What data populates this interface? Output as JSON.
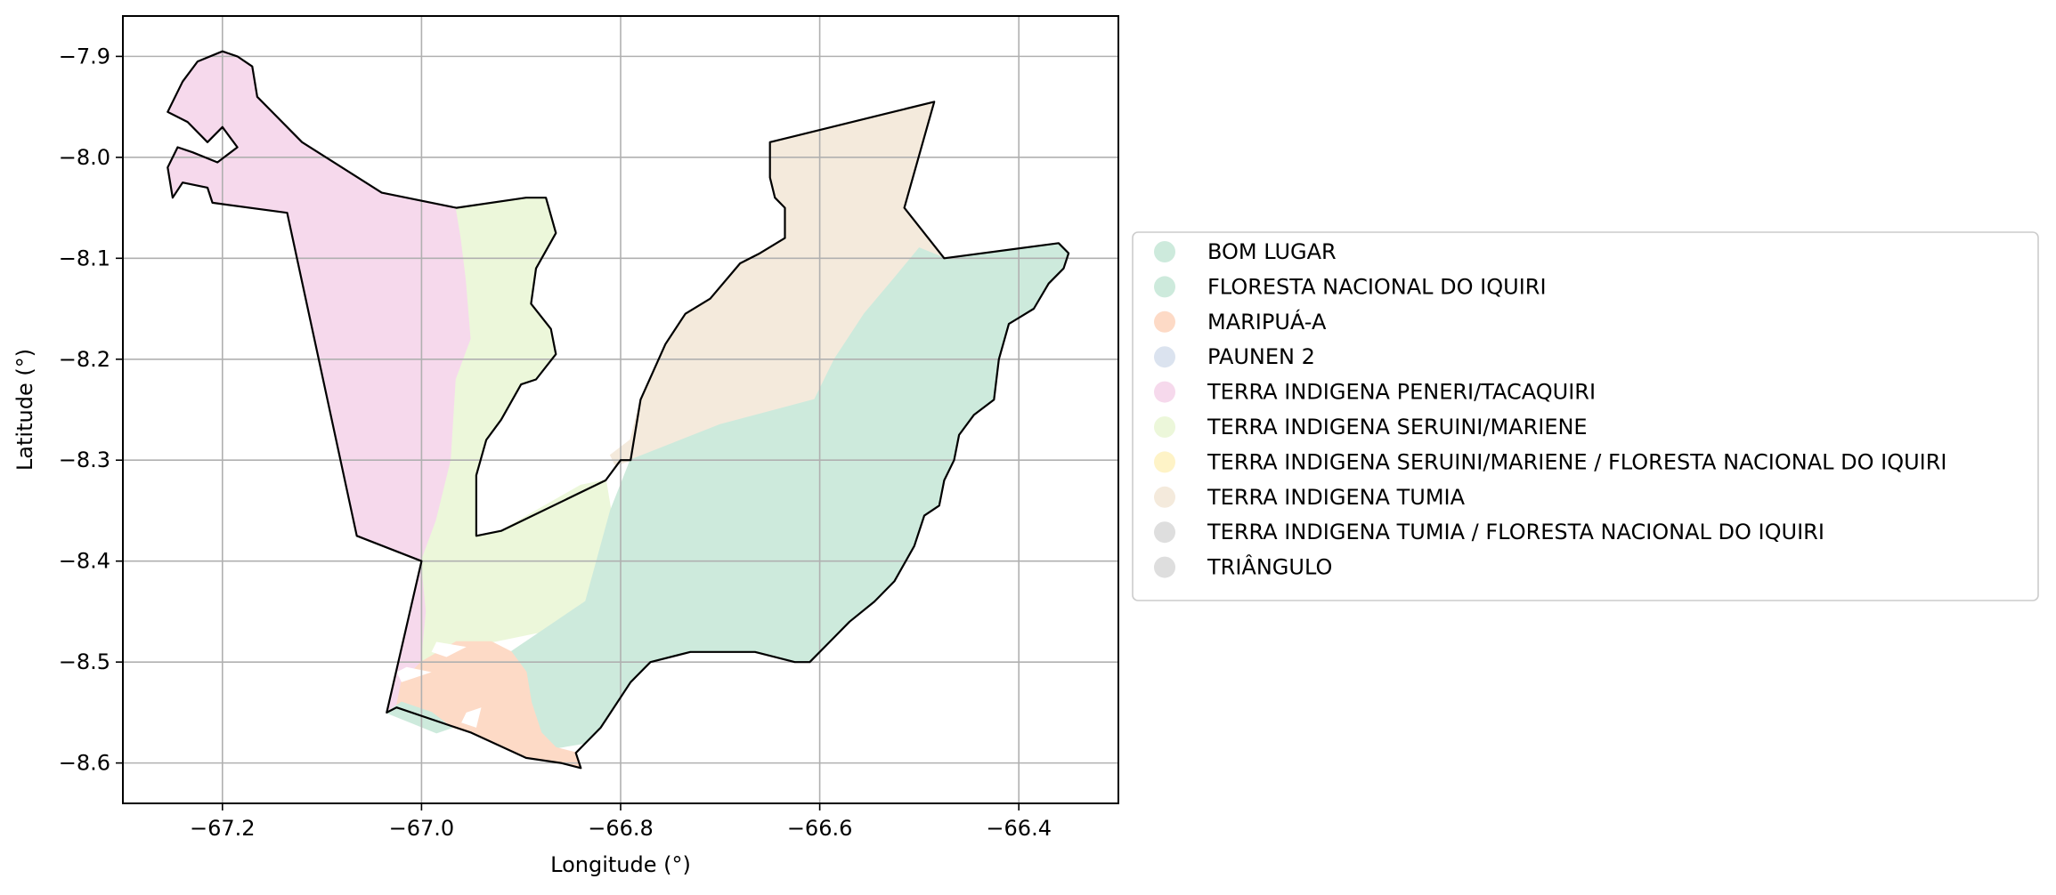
{
  "chart_data": {
    "type": "map",
    "xlabel": "Longitude (°)",
    "ylabel": "Latitude (°)",
    "xlim": [
      -67.3,
      -66.3
    ],
    "ylim": [
      -8.64,
      -7.86
    ],
    "xticks": [
      -67.2,
      -67.0,
      -66.8,
      -66.6,
      -66.4
    ],
    "yticks": [
      -7.9,
      -8.0,
      -8.1,
      -8.2,
      -8.3,
      -8.4,
      -8.5,
      -8.6
    ],
    "xtick_labels": [
      "−67.2",
      "−67.0",
      "−66.8",
      "−66.6",
      "−66.4"
    ],
    "ytick_labels": [
      "−7.9",
      "−8.0",
      "−8.1",
      "−8.2",
      "−8.3",
      "−8.4",
      "−8.5",
      "−8.6"
    ],
    "grid": true,
    "legend_position": "right",
    "legend": [
      {
        "label": "BOM LUGAR",
        "color": "#cdeadc"
      },
      {
        "label": "FLORESTA NACIONAL DO IQUIRI",
        "color": "#cdeadc"
      },
      {
        "label": "MARIPUÁ-A",
        "color": "#fddac6"
      },
      {
        "label": "PAUNEN 2",
        "color": "#dbe3ef"
      },
      {
        "label": "TERRA INDIGENA PENERI/TACAQUIRI",
        "color": "#f6d9ec"
      },
      {
        "label": "TERRA INDIGENA SERUINI/MARIENE",
        "color": "#ecf7da"
      },
      {
        "label": "TERRA INDIGENA SERUINI/MARIENE / FLORESTA NACIONAL DO IQUIRI",
        "color": "#fef3c7"
      },
      {
        "label": "TERRA INDIGENA TUMIA",
        "color": "#f4eadc"
      },
      {
        "label": "TERRA INDIGENA TUMIA / FLORESTA NACIONAL DO IQUIRI",
        "color": "#dedede"
      },
      {
        "label": "TRIÂNGULO",
        "color": "#dedede"
      }
    ],
    "regions": [
      {
        "label": "TERRA INDIGENA PENERI/TACAQUIRI",
        "color": "#f6d9ec",
        "coords": [
          [
            -67.2,
            -7.895
          ],
          [
            -67.185,
            -7.9
          ],
          [
            -67.17,
            -7.91
          ],
          [
            -67.165,
            -7.94
          ],
          [
            -67.12,
            -7.985
          ],
          [
            -67.04,
            -8.035
          ],
          [
            -66.965,
            -8.05
          ],
          [
            -66.96,
            -8.08
          ],
          [
            -66.955,
            -8.12
          ],
          [
            -66.95,
            -8.18
          ],
          [
            -66.965,
            -8.22
          ],
          [
            -66.97,
            -8.3
          ],
          [
            -66.985,
            -8.36
          ],
          [
            -67.0,
            -8.4
          ],
          [
            -66.995,
            -8.45
          ],
          [
            -66.99,
            -8.5
          ],
          [
            -66.975,
            -8.5
          ],
          [
            -67.035,
            -8.55
          ],
          [
            -67.0,
            -8.4
          ],
          [
            -67.065,
            -8.375
          ],
          [
            -67.135,
            -8.055
          ],
          [
            -67.21,
            -8.045
          ],
          [
            -67.215,
            -8.03
          ],
          [
            -67.24,
            -8.025
          ],
          [
            -67.25,
            -8.04
          ],
          [
            -67.255,
            -8.01
          ],
          [
            -67.245,
            -7.99
          ],
          [
            -67.23,
            -7.995
          ],
          [
            -67.205,
            -8.005
          ],
          [
            -67.185,
            -7.99
          ],
          [
            -67.2,
            -7.97
          ],
          [
            -67.215,
            -7.985
          ],
          [
            -67.235,
            -7.965
          ],
          [
            -67.255,
            -7.955
          ],
          [
            -67.24,
            -7.925
          ],
          [
            -67.225,
            -7.905
          ]
        ]
      },
      {
        "label": "TERRA INDIGENA SERUINI/MARIENE",
        "color": "#ecf7da",
        "coords": [
          [
            -66.965,
            -8.05
          ],
          [
            -66.895,
            -8.04
          ],
          [
            -66.875,
            -8.04
          ],
          [
            -66.865,
            -8.075
          ],
          [
            -66.885,
            -8.11
          ],
          [
            -66.89,
            -8.145
          ],
          [
            -66.87,
            -8.17
          ],
          [
            -66.865,
            -8.195
          ],
          [
            -66.885,
            -8.22
          ],
          [
            -66.9,
            -8.225
          ],
          [
            -66.92,
            -8.26
          ],
          [
            -66.935,
            -8.28
          ],
          [
            -66.945,
            -8.315
          ],
          [
            -66.945,
            -8.375
          ],
          [
            -66.92,
            -8.37
          ],
          [
            -66.84,
            -8.325
          ],
          [
            -66.815,
            -8.32
          ],
          [
            -66.81,
            -8.35
          ],
          [
            -66.835,
            -8.44
          ],
          [
            -66.88,
            -8.47
          ],
          [
            -66.93,
            -8.48
          ],
          [
            -66.965,
            -8.48
          ],
          [
            -67.0,
            -8.5
          ],
          [
            -66.995,
            -8.45
          ],
          [
            -67.0,
            -8.4
          ],
          [
            -66.985,
            -8.36
          ],
          [
            -66.97,
            -8.3
          ],
          [
            -66.965,
            -8.22
          ],
          [
            -66.95,
            -8.18
          ],
          [
            -66.955,
            -8.12
          ],
          [
            -66.96,
            -8.08
          ]
        ]
      },
      {
        "label": "TERRA INDIGENA TUMIA",
        "color": "#f4eadc",
        "coords": [
          [
            -66.65,
            -7.985
          ],
          [
            -66.485,
            -7.945
          ],
          [
            -66.515,
            -8.05
          ],
          [
            -66.475,
            -8.1
          ],
          [
            -66.5,
            -8.09
          ],
          [
            -66.525,
            -8.12
          ],
          [
            -66.555,
            -8.155
          ],
          [
            -66.585,
            -8.2
          ],
          [
            -66.605,
            -8.24
          ],
          [
            -66.7,
            -8.265
          ],
          [
            -66.79,
            -8.3
          ],
          [
            -66.805,
            -8.305
          ],
          [
            -66.81,
            -8.295
          ],
          [
            -66.79,
            -8.28
          ],
          [
            -66.78,
            -8.24
          ],
          [
            -66.755,
            -8.185
          ],
          [
            -66.735,
            -8.155
          ],
          [
            -66.71,
            -8.14
          ],
          [
            -66.68,
            -8.105
          ],
          [
            -66.66,
            -8.095
          ],
          [
            -66.635,
            -8.08
          ],
          [
            -66.635,
            -8.05
          ],
          [
            -66.645,
            -8.04
          ],
          [
            -66.65,
            -8.02
          ]
        ]
      },
      {
        "label": "FLORESTA NACIONAL DO IQUIRI",
        "color": "#cdeadc",
        "coords": [
          [
            -66.5,
            -8.09
          ],
          [
            -66.475,
            -8.1
          ],
          [
            -66.36,
            -8.085
          ],
          [
            -66.35,
            -8.095
          ],
          [
            -66.355,
            -8.11
          ],
          [
            -66.37,
            -8.125
          ],
          [
            -66.385,
            -8.15
          ],
          [
            -66.41,
            -8.165
          ],
          [
            -66.42,
            -8.2
          ],
          [
            -66.425,
            -8.24
          ],
          [
            -66.445,
            -8.255
          ],
          [
            -66.46,
            -8.275
          ],
          [
            -66.465,
            -8.3
          ],
          [
            -66.475,
            -8.32
          ],
          [
            -66.48,
            -8.345
          ],
          [
            -66.495,
            -8.355
          ],
          [
            -66.505,
            -8.385
          ],
          [
            -66.525,
            -8.42
          ],
          [
            -66.545,
            -8.44
          ],
          [
            -66.57,
            -8.46
          ],
          [
            -66.59,
            -8.48
          ],
          [
            -66.61,
            -8.5
          ],
          [
            -66.625,
            -8.5
          ],
          [
            -66.665,
            -8.49
          ],
          [
            -66.73,
            -8.49
          ],
          [
            -66.77,
            -8.5
          ],
          [
            -66.79,
            -8.52
          ],
          [
            -66.81,
            -8.55
          ],
          [
            -66.82,
            -8.565
          ],
          [
            -66.835,
            -8.58
          ],
          [
            -66.865,
            -8.585
          ],
          [
            -66.88,
            -8.57
          ],
          [
            -66.89,
            -8.54
          ],
          [
            -66.895,
            -8.51
          ],
          [
            -66.91,
            -8.49
          ],
          [
            -66.88,
            -8.47
          ],
          [
            -66.835,
            -8.44
          ],
          [
            -66.81,
            -8.35
          ],
          [
            -66.79,
            -8.3
          ],
          [
            -66.7,
            -8.265
          ],
          [
            -66.605,
            -8.24
          ],
          [
            -66.585,
            -8.2
          ],
          [
            -66.555,
            -8.155
          ],
          [
            -66.525,
            -8.12
          ]
        ]
      },
      {
        "label": "MARIPUÁ-A",
        "color": "#fddac6",
        "coords": [
          [
            -66.965,
            -8.48
          ],
          [
            -66.93,
            -8.48
          ],
          [
            -66.91,
            -8.49
          ],
          [
            -66.895,
            -8.51
          ],
          [
            -66.89,
            -8.54
          ],
          [
            -66.88,
            -8.57
          ],
          [
            -66.865,
            -8.585
          ],
          [
            -66.845,
            -8.59
          ],
          [
            -66.84,
            -8.605
          ],
          [
            -66.86,
            -8.6
          ],
          [
            -66.895,
            -8.595
          ],
          [
            -66.95,
            -8.57
          ],
          [
            -66.985,
            -8.56
          ],
          [
            -67.025,
            -8.545
          ],
          [
            -67.02,
            -8.52
          ],
          [
            -67.0,
            -8.5
          ]
        ]
      },
      {
        "label": "FLORESTA NACIONAL DO IQUIRI",
        "color": "#cdeadc",
        "coords": [
          [
            -67.035,
            -8.55
          ],
          [
            -67.02,
            -8.54
          ],
          [
            -66.99,
            -8.55
          ],
          [
            -66.97,
            -8.565
          ],
          [
            -66.985,
            -8.57
          ],
          [
            -67.01,
            -8.56
          ]
        ]
      }
    ],
    "holes": [
      {
        "color": "#ffffff",
        "coords": [
          [
            -66.985,
            -8.48
          ],
          [
            -66.955,
            -8.485
          ],
          [
            -66.975,
            -8.495
          ],
          [
            -66.99,
            -8.49
          ]
        ]
      },
      {
        "color": "#ffffff",
        "coords": [
          [
            -67.015,
            -8.505
          ],
          [
            -66.99,
            -8.51
          ],
          [
            -67.02,
            -8.52
          ],
          [
            -67.025,
            -8.51
          ]
        ]
      },
      {
        "color": "#ffffff",
        "coords": [
          [
            -66.955,
            -8.55
          ],
          [
            -66.94,
            -8.545
          ],
          [
            -66.945,
            -8.565
          ],
          [
            -66.96,
            -8.56
          ]
        ]
      }
    ],
    "outline": [
      [
        -67.2,
        -7.895
      ],
      [
        -67.185,
        -7.9
      ],
      [
        -67.17,
        -7.91
      ],
      [
        -67.165,
        -7.94
      ],
      [
        -67.12,
        -7.985
      ],
      [
        -67.04,
        -8.035
      ],
      [
        -66.965,
        -8.05
      ],
      [
        -66.895,
        -8.04
      ],
      [
        -66.875,
        -8.04
      ],
      [
        -66.865,
        -8.075
      ],
      [
        -66.885,
        -8.11
      ],
      [
        -66.89,
        -8.145
      ],
      [
        -66.87,
        -8.17
      ],
      [
        -66.865,
        -8.195
      ],
      [
        -66.885,
        -8.22
      ],
      [
        -66.9,
        -8.225
      ],
      [
        -66.92,
        -8.26
      ],
      [
        -66.935,
        -8.28
      ],
      [
        -66.945,
        -8.315
      ],
      [
        -66.945,
        -8.375
      ],
      [
        -66.92,
        -8.37
      ],
      [
        -66.815,
        -8.32
      ],
      [
        -66.8,
        -8.3
      ],
      [
        -66.79,
        -8.3
      ],
      [
        -66.78,
        -8.24
      ],
      [
        -66.755,
        -8.185
      ],
      [
        -66.735,
        -8.155
      ],
      [
        -66.71,
        -8.14
      ],
      [
        -66.68,
        -8.105
      ],
      [
        -66.66,
        -8.095
      ],
      [
        -66.635,
        -8.08
      ],
      [
        -66.635,
        -8.05
      ],
      [
        -66.645,
        -8.04
      ],
      [
        -66.65,
        -8.02
      ],
      [
        -66.65,
        -7.985
      ],
      [
        -66.485,
        -7.945
      ],
      [
        -66.515,
        -8.05
      ],
      [
        -66.475,
        -8.1
      ],
      [
        -66.36,
        -8.085
      ],
      [
        -66.35,
        -8.095
      ],
      [
        -66.355,
        -8.11
      ],
      [
        -66.37,
        -8.125
      ],
      [
        -66.385,
        -8.15
      ],
      [
        -66.41,
        -8.165
      ],
      [
        -66.42,
        -8.2
      ],
      [
        -66.425,
        -8.24
      ],
      [
        -66.445,
        -8.255
      ],
      [
        -66.46,
        -8.275
      ],
      [
        -66.465,
        -8.3
      ],
      [
        -66.475,
        -8.32
      ],
      [
        -66.48,
        -8.345
      ],
      [
        -66.495,
        -8.355
      ],
      [
        -66.505,
        -8.385
      ],
      [
        -66.525,
        -8.42
      ],
      [
        -66.545,
        -8.44
      ],
      [
        -66.57,
        -8.46
      ],
      [
        -66.59,
        -8.48
      ],
      [
        -66.61,
        -8.5
      ],
      [
        -66.625,
        -8.5
      ],
      [
        -66.665,
        -8.49
      ],
      [
        -66.73,
        -8.49
      ],
      [
        -66.77,
        -8.5
      ],
      [
        -66.79,
        -8.52
      ],
      [
        -66.81,
        -8.55
      ],
      [
        -66.82,
        -8.565
      ],
      [
        -66.835,
        -8.58
      ],
      [
        -66.845,
        -8.59
      ],
      [
        -66.84,
        -8.605
      ],
      [
        -66.86,
        -8.6
      ],
      [
        -66.895,
        -8.595
      ],
      [
        -66.95,
        -8.57
      ],
      [
        -67.025,
        -8.545
      ],
      [
        -67.035,
        -8.55
      ],
      [
        -67.0,
        -8.4
      ],
      [
        -67.065,
        -8.375
      ],
      [
        -67.135,
        -8.055
      ],
      [
        -67.21,
        -8.045
      ],
      [
        -67.215,
        -8.03
      ],
      [
        -67.24,
        -8.025
      ],
      [
        -67.25,
        -8.04
      ],
      [
        -67.255,
        -8.01
      ],
      [
        -67.245,
        -7.99
      ],
      [
        -67.23,
        -7.995
      ],
      [
        -67.205,
        -8.005
      ],
      [
        -67.185,
        -7.99
      ],
      [
        -67.2,
        -7.97
      ],
      [
        -67.215,
        -7.985
      ],
      [
        -67.235,
        -7.965
      ],
      [
        -67.255,
        -7.955
      ],
      [
        -67.24,
        -7.925
      ],
      [
        -67.225,
        -7.905
      ]
    ]
  }
}
